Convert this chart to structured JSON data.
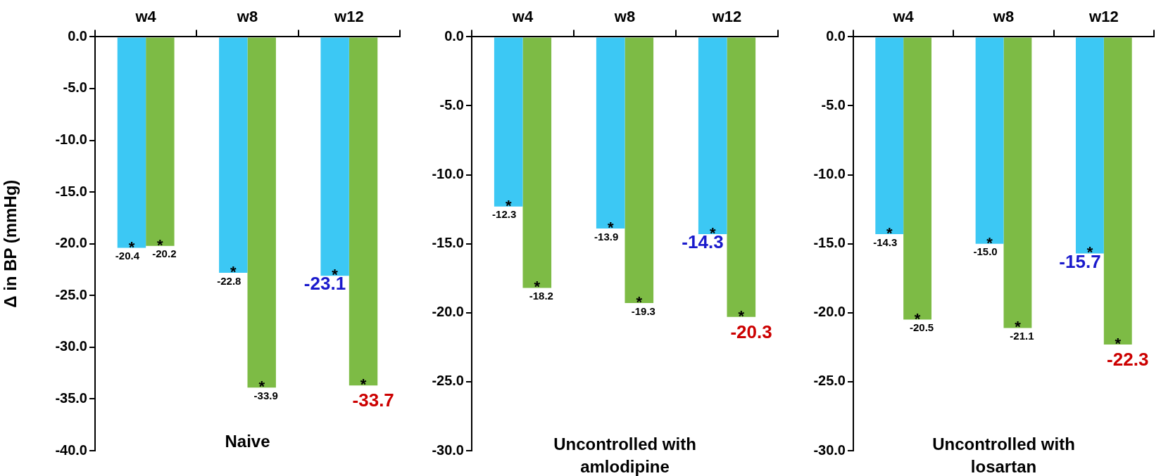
{
  "chart_data": [
    {
      "type": "bar",
      "xlabel": "Naive",
      "ylabel": "Δ in BP (mmHg)",
      "categories": [
        "w4",
        "w8",
        "w12"
      ],
      "ylim": [
        -40,
        0
      ],
      "yticks": [
        {
          "value": 0,
          "label": "0.0"
        },
        {
          "value": -5,
          "label": "-5.0"
        },
        {
          "value": -10,
          "label": "-10.0"
        },
        {
          "value": -15,
          "label": "-15.0"
        },
        {
          "value": -20,
          "label": "-20.0"
        },
        {
          "value": -25,
          "label": "-25.0"
        },
        {
          "value": -30,
          "label": "-30.0"
        },
        {
          "value": -35,
          "label": "-35.0"
        },
        {
          "value": -40,
          "label": "-40.0"
        }
      ],
      "grid": false,
      "legend": false,
      "series": [
        {
          "color": "#3cc8f4",
          "values": [
            -20.4,
            -22.8,
            -23.1
          ],
          "value_labels": [
            "-20.4",
            "-22.8",
            "-23.1"
          ]
        },
        {
          "color": "#7dbb45",
          "values": [
            -20.2,
            -33.9,
            -33.7
          ],
          "value_labels": [
            "-20.2",
            "-33.9",
            "-33.7"
          ]
        }
      ],
      "annotations": [
        {
          "text": "*",
          "x": "w4",
          "y": -20.4
        },
        {
          "text": "*",
          "x": "w4",
          "y": -20.2
        },
        {
          "text": "*",
          "x": "w8",
          "y": -22.8
        },
        {
          "text": "*",
          "x": "w8",
          "y": -33.9
        },
        {
          "text": "*",
          "x": "w12",
          "y": -23.1
        },
        {
          "text": "*",
          "x": "w12",
          "y": -33.7
        }
      ]
    },
    {
      "type": "bar",
      "xlabel": "Uncontrolled with amlodipine",
      "categories": [
        "w4",
        "w8",
        "w12"
      ],
      "ylim": [
        -30,
        0
      ],
      "yticks": [
        {
          "value": 0,
          "label": "0.0"
        },
        {
          "value": -5,
          "label": "-5.0"
        },
        {
          "value": -10,
          "label": "-10.0"
        },
        {
          "value": -15,
          "label": "-15.0"
        },
        {
          "value": -20,
          "label": "-20.0"
        },
        {
          "value": -25,
          "label": "-25.0"
        },
        {
          "value": -30,
          "label": "-30.0"
        }
      ],
      "grid": false,
      "legend": false,
      "series": [
        {
          "color": "#3cc8f4",
          "values": [
            -12.3,
            -13.9,
            -14.3
          ],
          "value_labels": [
            "-12.3",
            "-13.9",
            "-14.3"
          ]
        },
        {
          "color": "#7dbb45",
          "values": [
            -18.2,
            -19.3,
            -20.3
          ],
          "value_labels": [
            "-18.2",
            "-19.3",
            "-20.3"
          ]
        }
      ],
      "annotations": [
        {
          "text": "*",
          "x": "w4",
          "y": -12.3
        },
        {
          "text": "*",
          "x": "w4",
          "y": -18.2
        },
        {
          "text": "*",
          "x": "w8",
          "y": -13.9
        },
        {
          "text": "*",
          "x": "w8",
          "y": -19.3
        },
        {
          "text": "*",
          "x": "w12",
          "y": -14.3
        },
        {
          "text": "*",
          "x": "w12",
          "y": -20.3
        }
      ]
    },
    {
      "type": "bar",
      "xlabel": "Uncontrolled with losartan",
      "categories": [
        "w4",
        "w8",
        "w12"
      ],
      "ylim": [
        -30,
        0
      ],
      "yticks": [
        {
          "value": 0,
          "label": "0.0"
        },
        {
          "value": -5,
          "label": "-5.0"
        },
        {
          "value": -10,
          "label": "-10.0"
        },
        {
          "value": -15,
          "label": "-15.0"
        },
        {
          "value": -20,
          "label": "-20.0"
        },
        {
          "value": -25,
          "label": "-25.0"
        },
        {
          "value": -30,
          "label": "-30.0"
        }
      ],
      "grid": false,
      "legend": false,
      "series": [
        {
          "color": "#3cc8f4",
          "values": [
            -14.3,
            -15.0,
            -15.7
          ],
          "value_labels": [
            "-14.3",
            "-15.0",
            "-15.7"
          ]
        },
        {
          "color": "#7dbb45",
          "values": [
            -20.5,
            -21.1,
            -22.3
          ],
          "value_labels": [
            "-20.5",
            "-21.1",
            "-22.3"
          ]
        }
      ],
      "annotations": [
        {
          "text": "*",
          "x": "w4",
          "y": -14.3
        },
        {
          "text": "*",
          "x": "w4",
          "y": -20.5
        },
        {
          "text": "*",
          "x": "w8",
          "y": -15.0
        },
        {
          "text": "*",
          "x": "w8",
          "y": -21.1
        },
        {
          "text": "*",
          "x": "w12",
          "y": -15.7
        },
        {
          "text": "*",
          "x": "w12",
          "y": -22.3
        }
      ]
    }
  ]
}
